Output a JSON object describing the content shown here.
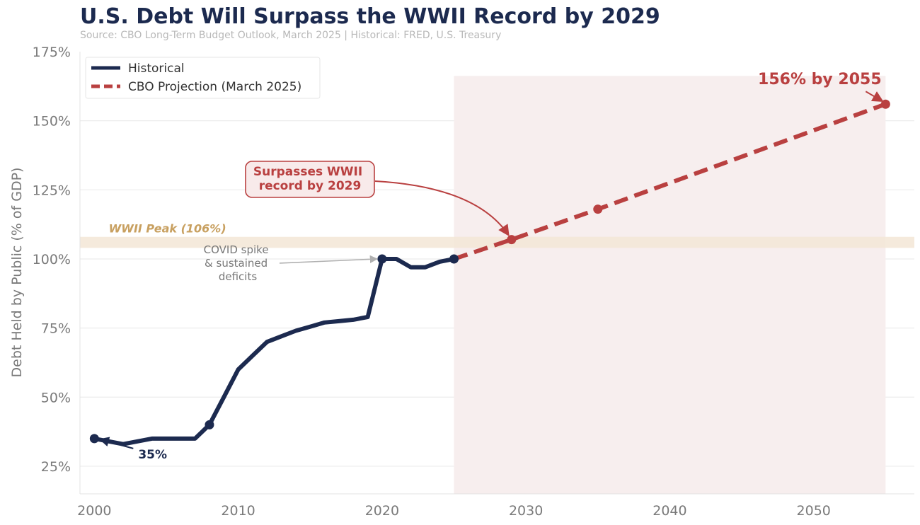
{
  "title": "U.S. Debt Will Surpass the WWII Record by 2029",
  "subtitle": "Source: CBO Long-Term Budget Outlook, March 2025  |  Historical: FRED, U.S. Treasury",
  "colors": {
    "historical": "#1c2a4f",
    "projection": "#b94040",
    "wwii_band": "#f3e6d6",
    "wwii_text": "#c8a060",
    "projection_fill": "#f7eeee",
    "grid": "#ececec",
    "tick": "#7a7a7a"
  },
  "chart_data": {
    "type": "line",
    "title": "U.S. Debt Will Surpass the WWII Record by 2029",
    "xlabel": "",
    "ylabel": "Debt Held by Public (% of GDP)",
    "xlim": [
      1999,
      2057
    ],
    "ylim": [
      15,
      175
    ],
    "x_ticks": [
      2000,
      2010,
      2020,
      2030,
      2040,
      2050
    ],
    "y_ticks": [
      25,
      50,
      75,
      100,
      125,
      150,
      175
    ],
    "y_tick_labels": [
      "25%",
      "50%",
      "75%",
      "100%",
      "125%",
      "150%",
      "175%"
    ],
    "grid": true,
    "legend_position": "top-left",
    "series": [
      {
        "name": "Historical",
        "style": "solid",
        "x": [
          2000,
          2001,
          2002,
          2003,
          2004,
          2005,
          2006,
          2007,
          2008,
          2009,
          2010,
          2011,
          2012,
          2013,
          2014,
          2015,
          2016,
          2017,
          2018,
          2019,
          2020,
          2021,
          2022,
          2023,
          2024,
          2025
        ],
        "y": [
          35,
          34,
          33,
          34,
          35,
          35,
          35,
          35,
          40,
          50,
          60,
          65,
          70,
          72,
          74,
          75.5,
          77,
          77.5,
          78,
          79,
          100,
          100,
          97,
          97,
          99,
          100
        ],
        "markers": [
          {
            "x": 2000,
            "y": 35
          },
          {
            "x": 2008,
            "y": 40
          },
          {
            "x": 2020,
            "y": 100
          },
          {
            "x": 2025,
            "y": 100
          }
        ]
      },
      {
        "name": "CBO Projection (March 2025)",
        "style": "dashed",
        "x": [
          2025,
          2029,
          2035,
          2055
        ],
        "y": [
          100,
          107,
          118,
          156
        ],
        "markers": [
          {
            "x": 2029,
            "y": 107
          },
          {
            "x": 2035,
            "y": 118
          },
          {
            "x": 2055,
            "y": 156
          }
        ]
      }
    ],
    "reference_band": {
      "label": "WWII Peak (106%)",
      "value": 106,
      "y_from": 104,
      "y_to": 108
    },
    "projection_region": {
      "x_from": 2025,
      "x_to": 2055
    },
    "annotations": [
      {
        "id": "start",
        "text": "35%",
        "x": 2000,
        "y": 35
      },
      {
        "id": "covid",
        "lines": [
          "COVID spike",
          "& sustained",
          "deficits"
        ],
        "x": 2020,
        "y": 100
      },
      {
        "id": "surpass",
        "lines": [
          "Surpasses WWII",
          "record by 2029"
        ],
        "x": 2029,
        "y": 107
      },
      {
        "id": "end",
        "text": "156% by 2055",
        "x": 2055,
        "y": 156
      }
    ]
  }
}
